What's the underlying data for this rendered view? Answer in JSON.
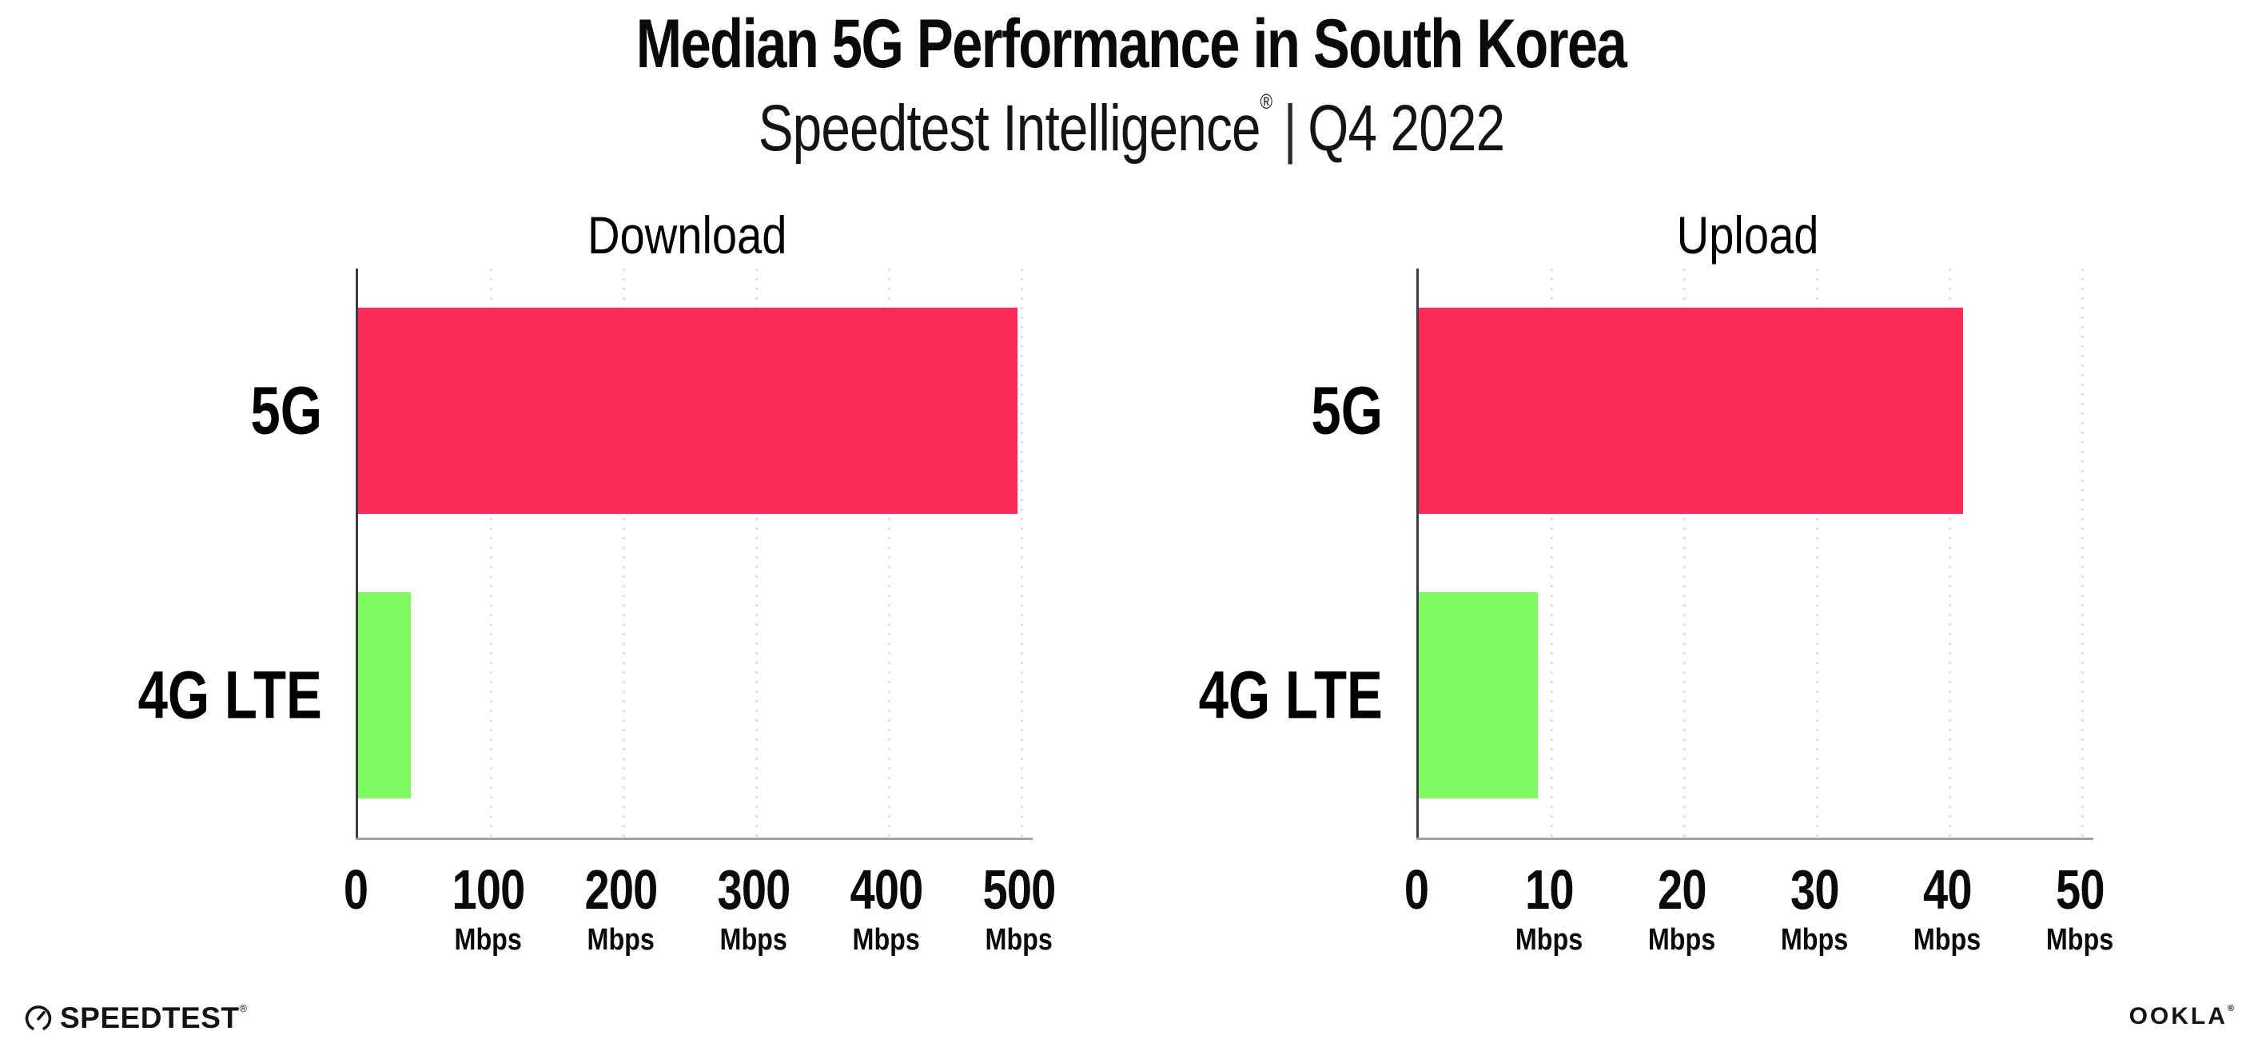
{
  "header": {
    "title": "Median 5G Performance in South Korea",
    "subtitle_brand": "Speedtest Intelligence",
    "subtitle_reg": "®",
    "subtitle_separator": "|",
    "subtitle_period": "Q4 2022"
  },
  "colors": {
    "series": {
      "5G": "#fb2d58",
      "4G LTE": "#80fa61"
    },
    "gridline": "#e0e0ea",
    "y_axis": "#3c3c44",
    "x_axis": "#a2a2aa",
    "text": "#0a0a0a"
  },
  "chart_data": [
    {
      "type": "bar",
      "orientation": "horizontal",
      "title": "Download",
      "categories": [
        "5G",
        "4G LTE"
      ],
      "values": [
        497,
        40
      ],
      "unit": "Mbps",
      "xlim": [
        0,
        500
      ],
      "xticks": [
        0,
        100,
        200,
        300,
        400,
        500
      ],
      "grid": "dotted-vertical",
      "legend": "none"
    },
    {
      "type": "bar",
      "orientation": "horizontal",
      "title": "Upload",
      "categories": [
        "5G",
        "4G LTE"
      ],
      "values": [
        41,
        9
      ],
      "unit": "Mbps",
      "xlim": [
        0,
        50
      ],
      "xticks": [
        0,
        10,
        20,
        30,
        40,
        50
      ],
      "grid": "dotted-vertical",
      "legend": "none"
    }
  ],
  "footer": {
    "speedtest_label": "SPEEDTEST",
    "speedtest_reg": "®",
    "ookla_label": "OOKLA",
    "ookla_reg": "®"
  }
}
